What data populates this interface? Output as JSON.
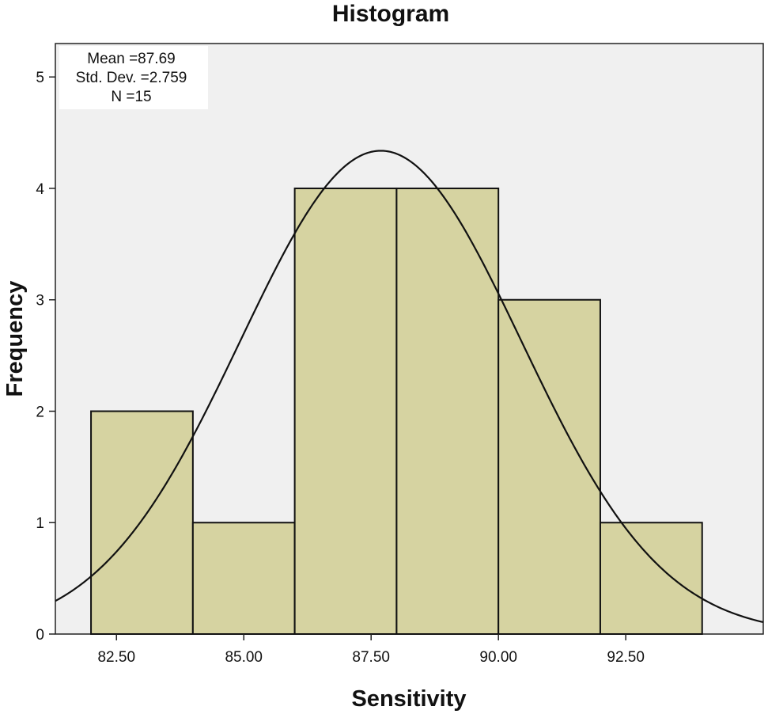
{
  "chart_data": {
    "type": "bar",
    "subtype": "histogram",
    "title": "Histogram",
    "xlabel": "Sensitivity",
    "ylabel": "Frequency",
    "bins": [
      {
        "from": 82.0,
        "to": 84.0,
        "count": 2
      },
      {
        "from": 84.0,
        "to": 86.0,
        "count": 1
      },
      {
        "from": 86.0,
        "to": 88.0,
        "count": 4
      },
      {
        "from": 88.0,
        "to": 90.0,
        "count": 4
      },
      {
        "from": 90.0,
        "to": 92.0,
        "count": 3
      },
      {
        "from": 92.0,
        "to": 94.0,
        "count": 1
      }
    ],
    "xlim": [
      81.3,
      95.2
    ],
    "ylim": [
      0,
      5.3
    ],
    "xticks": [
      82.5,
      85.0,
      87.5,
      90.0,
      92.5
    ],
    "xtick_labels": [
      "82.50",
      "85.00",
      "87.50",
      "90.00",
      "92.50"
    ],
    "yticks": [
      0,
      1,
      2,
      3,
      4,
      5
    ],
    "ytick_labels": [
      "0",
      "1",
      "2",
      "3",
      "4",
      "5"
    ],
    "normal_curve": {
      "mean": 87.69,
      "std": 2.759,
      "n": 15,
      "bin_width": 2.0
    },
    "stats": {
      "mean_label": "Mean =87.69",
      "std_label": "Std. Dev. =2.759",
      "n_label": "N =15"
    },
    "colors": {
      "bar_fill": "#d6d3a1",
      "bar_stroke": "#111111",
      "plot_bg": "#f0f0f0",
      "curve": "#111111"
    }
  }
}
